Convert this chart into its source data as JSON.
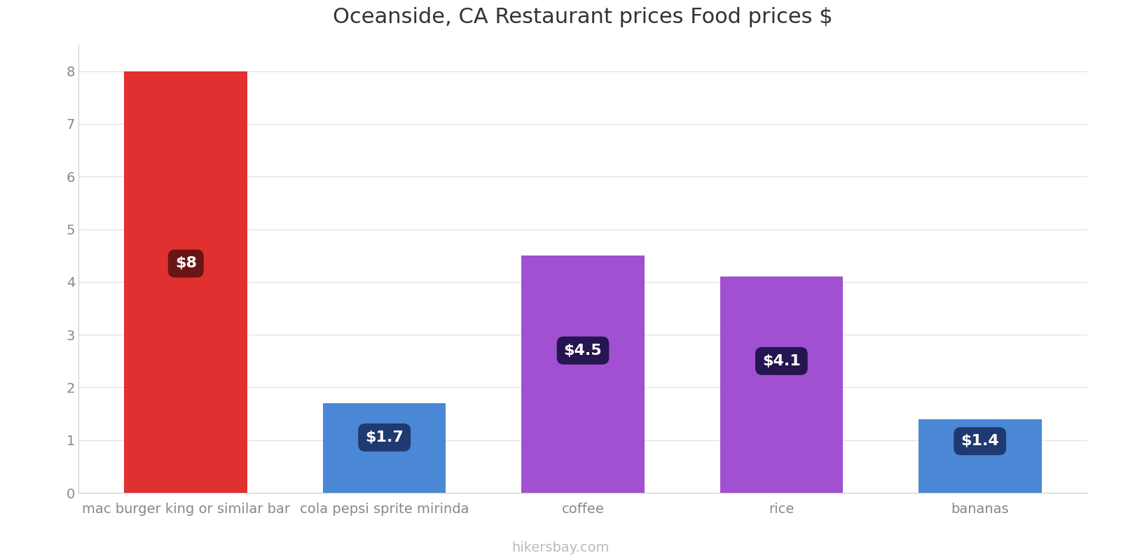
{
  "title": "Oceanside, CA Restaurant prices Food prices $",
  "categories": [
    "mac burger king or similar bar",
    "cola pepsi sprite mirinda",
    "coffee",
    "rice",
    "bananas"
  ],
  "values": [
    8.0,
    1.7,
    4.5,
    4.1,
    1.4
  ],
  "bar_colors": [
    "#e03030",
    "#4a87d5",
    "#a050d0",
    "#a050d0",
    "#4a87d5"
  ],
  "label_texts": [
    "$8",
    "$1.7",
    "$4.5",
    "$4.1",
    "$1.4"
  ],
  "label_box_colors": [
    "#6a1515",
    "#1e3a70",
    "#251550",
    "#251550",
    "#1e3a70"
  ],
  "label_y_positions": [
    4.35,
    1.05,
    2.7,
    2.5,
    0.98
  ],
  "ylim": [
    0,
    8.5
  ],
  "yticks": [
    0,
    1,
    2,
    3,
    4,
    5,
    6,
    7,
    8
  ],
  "background_color": "#ffffff",
  "watermark": "hikersbay.com",
  "title_fontsize": 22,
  "tick_fontsize": 14,
  "label_fontsize": 16,
  "watermark_fontsize": 14,
  "bar_width": 0.62
}
